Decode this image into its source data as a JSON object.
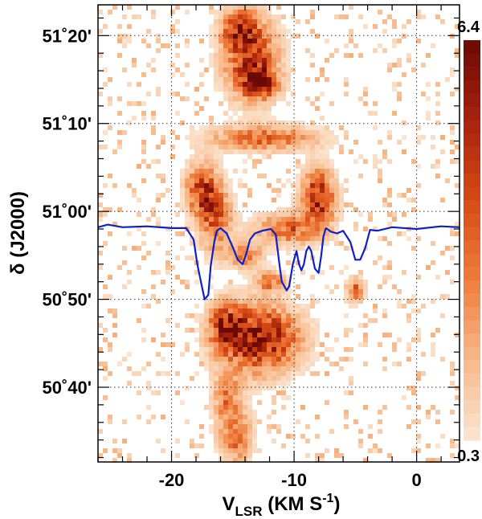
{
  "chart_data": {
    "type": "heatmap",
    "title": "",
    "xlabel_main": "V",
    "xlabel_sub": "LSR",
    "xlabel_unit_base": " (KM S",
    "xlabel_unit_exp": "-1",
    "xlabel_unit_close": ")",
    "ylabel": "δ (J2000)",
    "xlim": [
      -26,
      3.5
    ],
    "ylim_arcmin": [
      3031.5,
      3083.5
    ],
    "grid": true,
    "x_ticks": [
      {
        "value": -20,
        "label": "-20"
      },
      {
        "value": -10,
        "label": "-10"
      },
      {
        "value": 0,
        "label": "0"
      }
    ],
    "y_ticks": [
      {
        "value": 3040,
        "label": "50˚40'"
      },
      {
        "value": 3050,
        "label": "50˚50'"
      },
      {
        "value": 3060,
        "label": "51˚00'"
      },
      {
        "value": 3070,
        "label": "51˚10'"
      },
      {
        "value": 3080,
        "label": "51˚20'"
      }
    ],
    "colorbar": {
      "min": 0.3,
      "max": 6.4,
      "max_label": "6.4",
      "min_label": "0.3",
      "colors": [
        "#fbe6d3",
        "#f7b98a",
        "#ef7d3c",
        "#d64b15",
        "#a8220d",
        "#6b0a05"
      ]
    },
    "emission_features": [
      {
        "v": -13.5,
        "dec": 3077.5,
        "sv": 1.5,
        "sd": 3.0,
        "amp": 5.2
      },
      {
        "v": -14.6,
        "dec": 3081.0,
        "sv": 0.9,
        "sd": 1.4,
        "amp": 4.0
      },
      {
        "v": -12.8,
        "dec": 3074.5,
        "sv": 1.0,
        "sd": 1.2,
        "amp": 4.2
      },
      {
        "v": -12.5,
        "dec": 3068.3,
        "sv": 3.0,
        "sd": 1.0,
        "amp": 3.4
      },
      {
        "v": -17.5,
        "dec": 3062.5,
        "sv": 0.9,
        "sd": 2.0,
        "amp": 4.6
      },
      {
        "v": -16.4,
        "dec": 3059.0,
        "sv": 0.9,
        "sd": 2.5,
        "amp": 3.8
      },
      {
        "v": -8.0,
        "dec": 3061.5,
        "sv": 0.9,
        "sd": 2.2,
        "amp": 5.6
      },
      {
        "v": -10.5,
        "dec": 3058.0,
        "sv": 1.8,
        "sd": 1.2,
        "amp": 3.6
      },
      {
        "v": -14.0,
        "dec": 3055.0,
        "sv": 1.0,
        "sd": 1.0,
        "amp": 3.0
      },
      {
        "v": -12.0,
        "dec": 3052.0,
        "sv": 0.8,
        "sd": 0.8,
        "amp": 3.2
      },
      {
        "v": -5.0,
        "dec": 3051.0,
        "sv": 0.5,
        "sd": 1.0,
        "amp": 3.4
      },
      {
        "v": -12.8,
        "dec": 3045.5,
        "sv": 2.2,
        "sd": 2.6,
        "amp": 6.0
      },
      {
        "v": -15.5,
        "dec": 3047.0,
        "sv": 1.0,
        "sd": 1.8,
        "amp": 4.0
      },
      {
        "v": -15.5,
        "dec": 3039.0,
        "sv": 0.8,
        "sd": 2.0,
        "amp": 2.6
      },
      {
        "v": -14.8,
        "dec": 3034.5,
        "sv": 0.9,
        "sd": 2.2,
        "amp": 3.4
      }
    ],
    "series": [
      {
        "name": "",
        "color": "#0d1fc8",
        "x": [
          -26,
          -25.2,
          -24,
          -22,
          -20,
          -18.8,
          -18.2,
          -17.9,
          -17.6,
          -17.3,
          -17.0,
          -16.8,
          -16.5,
          -16.3,
          -16.0,
          -15.5,
          -14.9,
          -14.6,
          -14.2,
          -13.9,
          -13.6,
          -13.2,
          -12.6,
          -11.9,
          -11.5,
          -11.2,
          -11.0,
          -10.8,
          -10.6,
          -10.4,
          -10.1,
          -9.8,
          -9.6,
          -9.4,
          -9.2,
          -9.0,
          -8.8,
          -8.6,
          -8.3,
          -8.0,
          -7.8,
          -7.6,
          -7.4,
          -7.0,
          -6.5,
          -6.0,
          -5.4,
          -5.0,
          -4.6,
          -4.2,
          -3.8,
          -3.2,
          -2.0,
          0,
          2.0,
          3.5
        ],
        "y": [
          3058.2,
          3058.5,
          3058.2,
          3058.3,
          3058.1,
          3058.1,
          3056.8,
          3054.0,
          3052.0,
          3050.0,
          3050.5,
          3053.8,
          3056.6,
          3057.8,
          3058.1,
          3057.5,
          3055.6,
          3054.5,
          3054.0,
          3055.2,
          3056.8,
          3057.5,
          3057.8,
          3058.0,
          3057.4,
          3054.0,
          3052.0,
          3051.5,
          3051.0,
          3051.5,
          3054.0,
          3055.5,
          3054.0,
          3053.3,
          3054.0,
          3055.5,
          3056.0,
          3055.5,
          3053.5,
          3053.0,
          3054.8,
          3057.2,
          3058.1,
          3057.7,
          3057.5,
          3057.8,
          3056.5,
          3054.5,
          3054.5,
          3055.8,
          3057.9,
          3057.8,
          3058.2,
          3058.0,
          3058.3,
          3058.2
        ]
      }
    ]
  }
}
